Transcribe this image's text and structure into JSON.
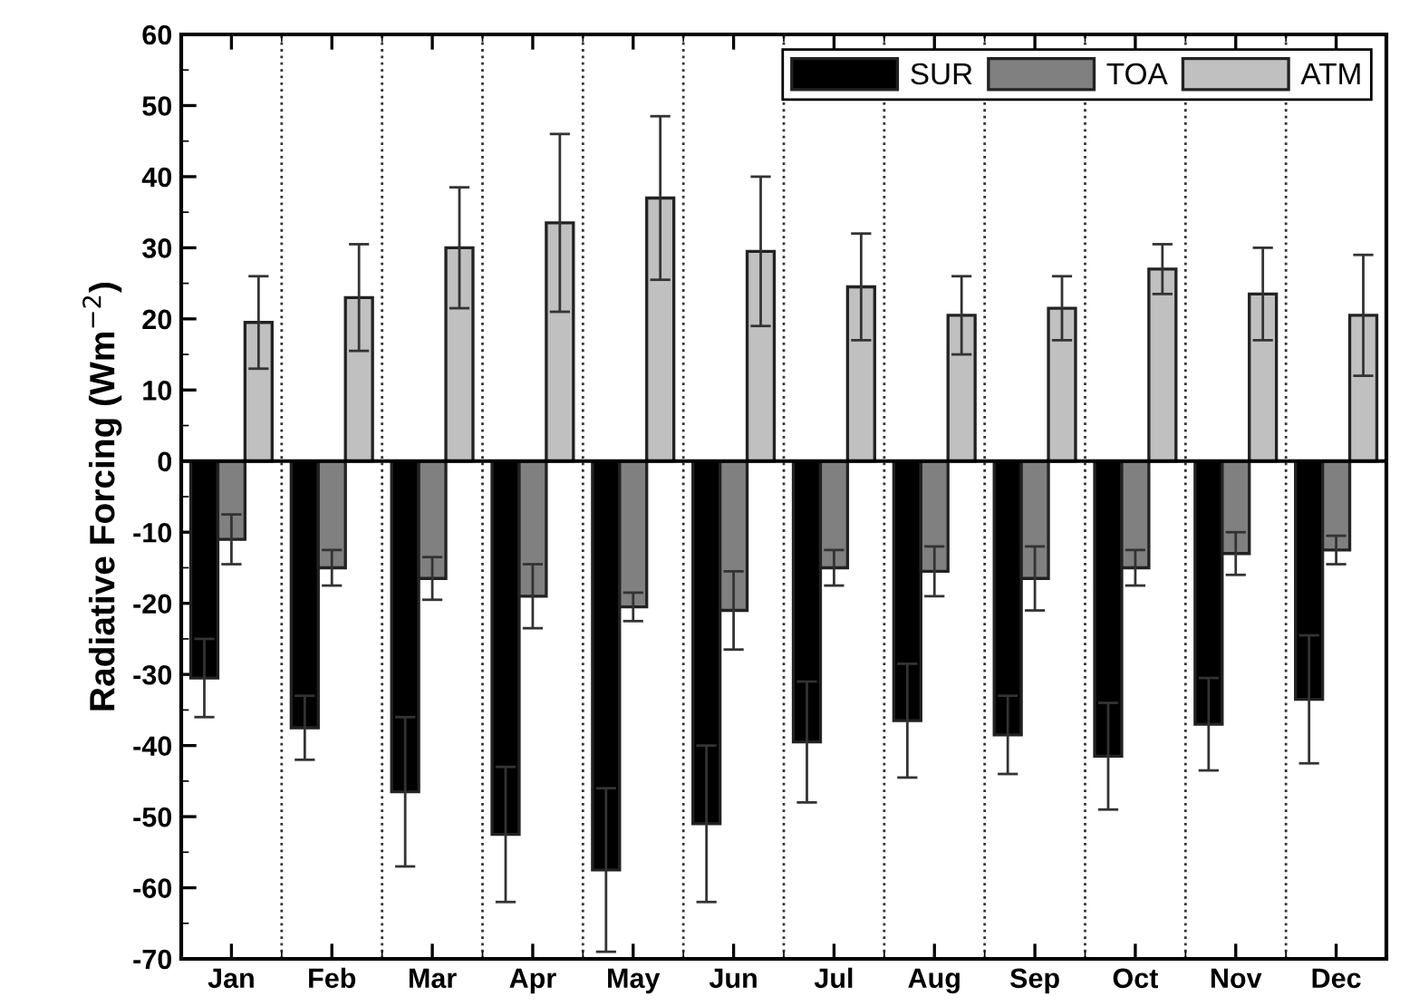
{
  "chart_data": {
    "type": "bar",
    "ylabel": "Radiative Forcing (Wm$^{−2}$)",
    "categories": [
      "Jan",
      "Feb",
      "Mar",
      "Apr",
      "May",
      "Jun",
      "Jul",
      "Aug",
      "Sep",
      "Oct",
      "Nov",
      "Dec"
    ],
    "series": [
      {
        "name": "SUR",
        "color": "#000000",
        "values": [
          -30.5,
          -37.5,
          -46.5,
          -52.5,
          -57.5,
          -51,
          -39.5,
          -36.5,
          -38.5,
          -41.5,
          -37,
          -33.5
        ],
        "errors": [
          5.5,
          4.5,
          10.5,
          9.5,
          11.5,
          11,
          8.5,
          8,
          5.5,
          7.5,
          6.5,
          9
        ]
      },
      {
        "name": "TOA",
        "color": "#808080",
        "values": [
          -11,
          -15,
          -16.5,
          -19,
          -20.5,
          -21,
          -15,
          -15.5,
          -16.5,
          -15,
          -13,
          -12.5
        ],
        "errors": [
          3.5,
          2.5,
          3,
          4.5,
          2,
          5.5,
          2.5,
          3.5,
          4.5,
          2.5,
          3,
          2
        ]
      },
      {
        "name": "ATM",
        "color": "#c0c0c0",
        "values": [
          19.5,
          23,
          30,
          33.5,
          37,
          29.5,
          24.5,
          20.5,
          21.5,
          27,
          23.5,
          20.5
        ],
        "errors": [
          6.5,
          7.5,
          8.5,
          12.5,
          11.5,
          10.5,
          7.5,
          5.5,
          4.5,
          3.5,
          6.5,
          8.5
        ]
      }
    ],
    "ylim": [
      -70,
      60
    ],
    "yticks": [
      -70,
      -60,
      -50,
      -40,
      -30,
      -20,
      -10,
      0,
      10,
      20,
      30,
      40,
      50,
      60
    ],
    "grid": "x",
    "legend": "top right"
  }
}
